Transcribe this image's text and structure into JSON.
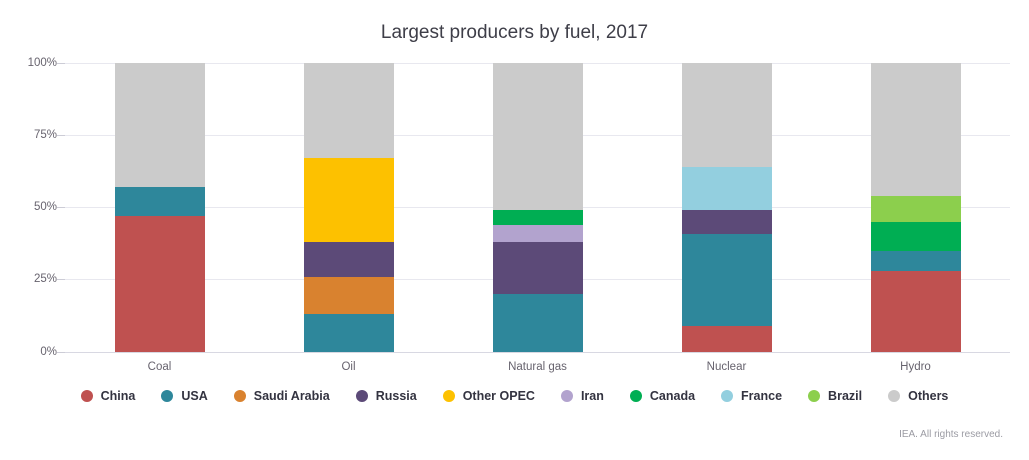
{
  "header": {
    "title": "Largest producers by fuel, 2017"
  },
  "footer": {
    "credit": "IEA. All rights reserved."
  },
  "chart_data": {
    "type": "bar",
    "stacked": true,
    "title": "Largest producers by fuel, 2017",
    "categories": [
      "Coal",
      "Oil",
      "Natural gas",
      "Nuclear",
      "Hydro"
    ],
    "series": [
      {
        "name": "China",
        "color": "#bf5150",
        "values": [
          47,
          0,
          0,
          9,
          28
        ]
      },
      {
        "name": "USA",
        "color": "#2e879b",
        "values": [
          10,
          13,
          20,
          32,
          7
        ]
      },
      {
        "name": "Saudi Arabia",
        "color": "#d9822f",
        "values": [
          0,
          13,
          0,
          0,
          0
        ]
      },
      {
        "name": "Russia",
        "color": "#5c4a78",
        "values": [
          0,
          12,
          18,
          8,
          0
        ]
      },
      {
        "name": "Other OPEC",
        "color": "#fdc100",
        "values": [
          0,
          29,
          0,
          0,
          0
        ]
      },
      {
        "name": "Iran",
        "color": "#b2a3ce",
        "values": [
          0,
          0,
          6,
          0,
          0
        ]
      },
      {
        "name": "Canada",
        "color": "#00ae53",
        "values": [
          0,
          0,
          5,
          0,
          10
        ]
      },
      {
        "name": "France",
        "color": "#93cfdf",
        "values": [
          0,
          0,
          0,
          15,
          0
        ]
      },
      {
        "name": "Brazil",
        "color": "#8ccf4d",
        "values": [
          0,
          0,
          0,
          0,
          9
        ]
      },
      {
        "name": "Others",
        "color": "#cbcbcb",
        "values": [
          43,
          33,
          51,
          36,
          46
        ]
      }
    ],
    "ylabel": "",
    "xlabel": "",
    "ylim": [
      0,
      100
    ],
    "yticks": [
      "0%",
      "25%",
      "50%",
      "75%",
      "100%"
    ],
    "grid": true,
    "legend_position": "bottom"
  }
}
